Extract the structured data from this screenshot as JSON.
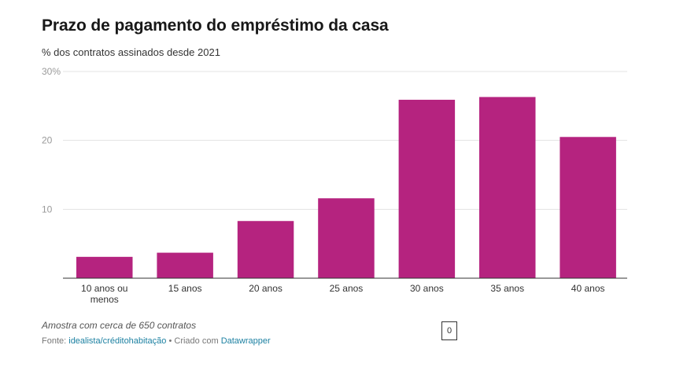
{
  "chart_data": {
    "type": "bar",
    "title": "Prazo de pagamento do empréstimo da casa",
    "subtitle": "% dos contratos assinados desde 2021",
    "categories": [
      [
        "10 anos ou",
        "menos"
      ],
      [
        "15 anos"
      ],
      [
        "20 anos"
      ],
      [
        "25 anos"
      ],
      [
        "30 anos"
      ],
      [
        "35 anos"
      ],
      [
        "40 anos"
      ]
    ],
    "values": [
      3.1,
      3.7,
      8.3,
      11.6,
      25.9,
      26.3,
      20.5
    ],
    "ylim": [
      0,
      30
    ],
    "yticks": [
      {
        "value": 30,
        "label": "30%"
      },
      {
        "value": 20,
        "label": "20"
      },
      {
        "value": 10,
        "label": "10"
      }
    ],
    "grid": true,
    "bar_color": "#b5237f",
    "notes": "Amostra com cerca de 650 contratos"
  },
  "footer": {
    "source_prefix": "Fonte:",
    "source_link": "idealista/créditohabitação",
    "separator": "•",
    "created_prefix": "Criado com",
    "created_link": "Datawrapper"
  },
  "badge": {
    "value": "0"
  }
}
